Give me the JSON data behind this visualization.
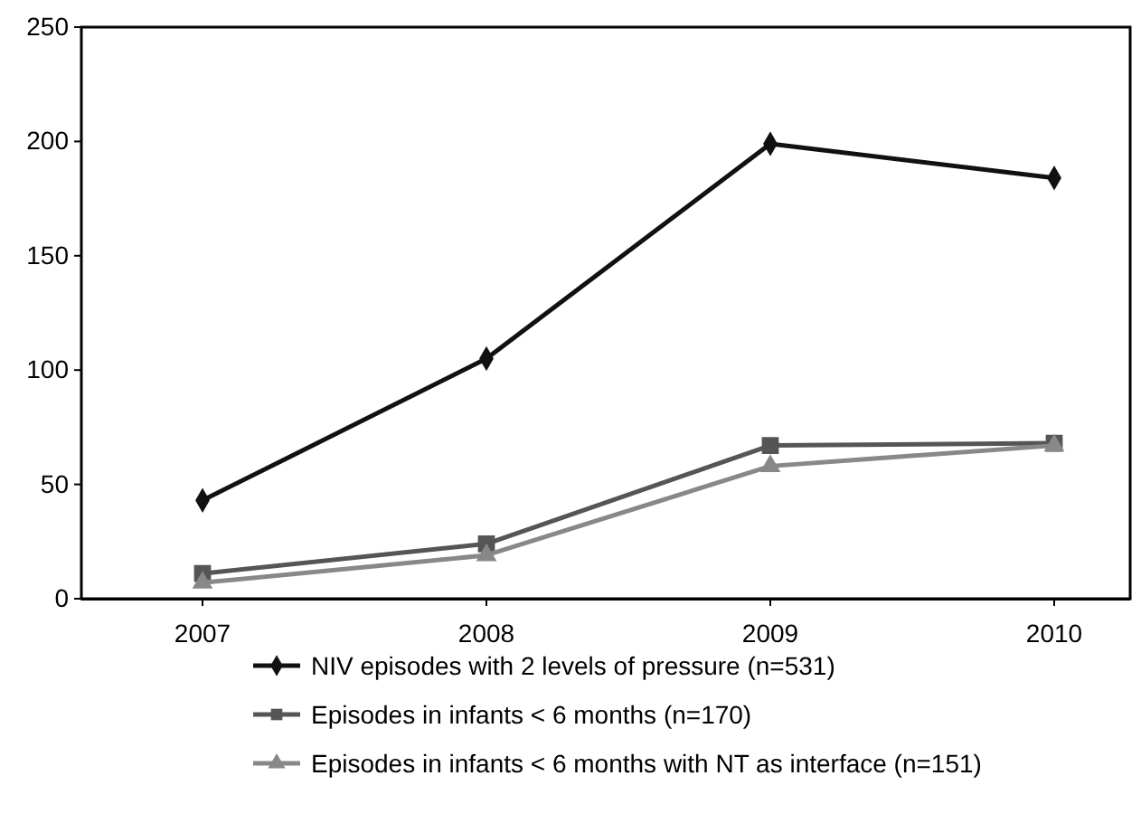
{
  "chart_data": {
    "type": "line",
    "categories": [
      "2007",
      "2008",
      "2009",
      "2010"
    ],
    "series": [
      {
        "name": "NIV episodes with 2 levels of pressure (n=531)",
        "color": "#111111",
        "marker": "diamond",
        "values": [
          43,
          105,
          199,
          184
        ]
      },
      {
        "name": "Episodes in infants < 6 months (n=170)",
        "color": "#555555",
        "marker": "square",
        "values": [
          11,
          24,
          67,
          68
        ]
      },
      {
        "name": "Episodes in infants < 6 months with NT as interface (n=151)",
        "color": "#888888",
        "marker": "triangle",
        "values": [
          7,
          19,
          58,
          67
        ]
      }
    ],
    "ylim": [
      0,
      250
    ],
    "yticks": [
      0,
      50,
      100,
      150,
      200,
      250
    ],
    "grid": false,
    "legend": "bottom",
    "line_style": "solid"
  }
}
